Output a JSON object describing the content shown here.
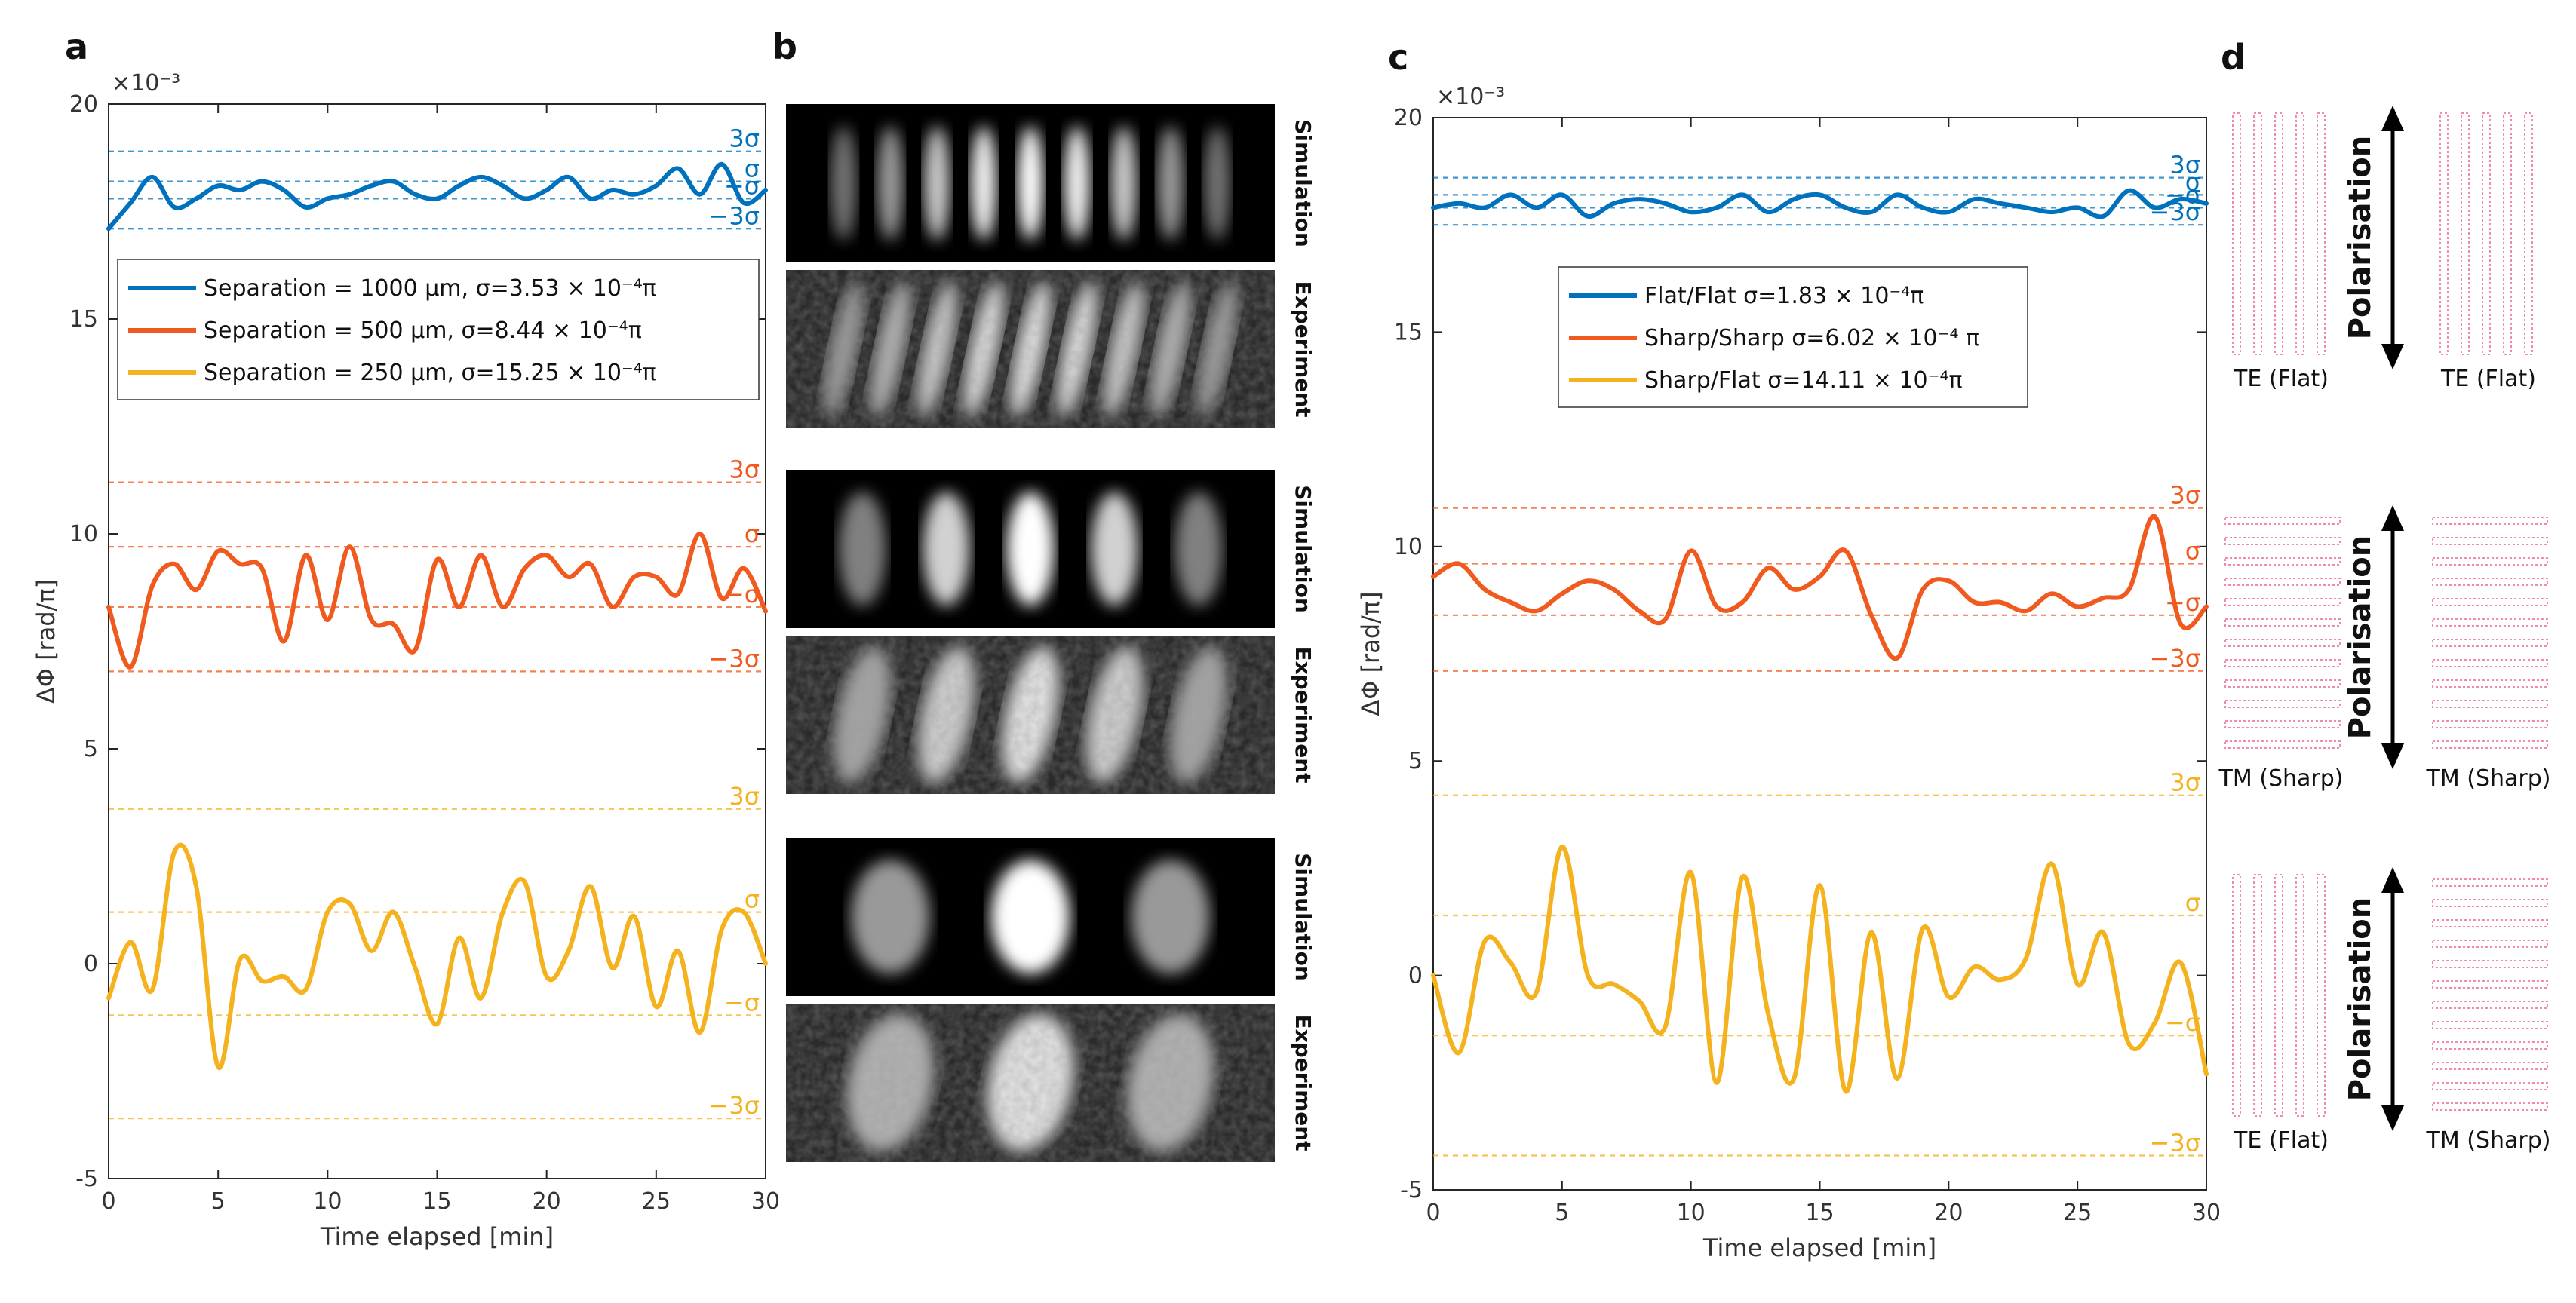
{
  "panels": {
    "a": "a",
    "b": "b",
    "c": "c",
    "d": "d"
  },
  "colors": {
    "blue": "#0072BD",
    "orange": "#F05A1E",
    "yellow": "#F5B21F",
    "pink": "#F28AAE"
  },
  "chart_data": [
    {
      "type": "line",
      "panel": "a",
      "title": "",
      "xlabel": "Time elapsed [min]",
      "ylabel": "ΔΦ [rad/π]",
      "yexponent": "×10⁻³",
      "xlim": [
        0,
        30
      ],
      "ylim": [
        -5,
        20
      ],
      "xticks": [
        "0",
        "5",
        "10",
        "15",
        "20",
        "25",
        "30"
      ],
      "yticks": [
        "-5",
        "0",
        "5",
        "10",
        "15",
        "20"
      ],
      "legend_position": "upper-left",
      "series": [
        {
          "name": "Separation = 1000 μm,  σ=3.53 × 10⁻⁴π",
          "color": "#0072BD",
          "x": [
            0,
            1,
            2,
            3,
            4,
            5,
            6,
            7,
            8,
            9,
            10,
            11,
            12,
            13,
            14,
            15,
            16,
            17,
            18,
            19,
            20,
            21,
            22,
            23,
            24,
            25,
            26,
            27,
            28,
            29,
            30
          ],
          "y": [
            17.1,
            17.7,
            18.3,
            17.6,
            17.8,
            18.1,
            18.0,
            18.2,
            18.0,
            17.6,
            17.8,
            17.9,
            18.1,
            18.2,
            17.9,
            17.8,
            18.1,
            18.3,
            18.1,
            17.8,
            18.0,
            18.3,
            17.8,
            18.0,
            17.9,
            18.1,
            18.5,
            17.9,
            18.6,
            17.7,
            18.0
          ],
          "sigma_lines": {
            "3σ": 18.9,
            "σ": 18.2,
            "-σ": 17.8,
            "-3σ": 17.1
          },
          "sigma_labels": [
            "3σ",
            "σ",
            "−σ",
            "−3σ"
          ]
        },
        {
          "name": "Separation = 500 μm,  σ=8.44 × 10⁻⁴π",
          "color": "#F05A1E",
          "x": [
            0,
            1,
            2,
            3,
            4,
            5,
            6,
            7,
            8,
            9,
            10,
            11,
            12,
            13,
            14,
            15,
            16,
            17,
            18,
            19,
            20,
            21,
            22,
            23,
            24,
            25,
            26,
            27,
            28,
            29,
            30
          ],
          "y": [
            8.3,
            6.9,
            8.8,
            9.3,
            8.7,
            9.6,
            9.3,
            9.2,
            7.5,
            9.5,
            8.0,
            9.7,
            8.0,
            7.9,
            7.3,
            9.4,
            8.3,
            9.5,
            8.3,
            9.2,
            9.5,
            9.0,
            9.3,
            8.3,
            9.0,
            9.0,
            8.6,
            10.0,
            8.5,
            9.2,
            8.2
          ],
          "sigma_lines": {
            "3σ": 11.2,
            "σ": 9.7,
            "-σ": 8.3,
            "-3σ": 6.8
          },
          "sigma_labels": [
            "3σ",
            "σ",
            "−σ",
            "−3σ"
          ]
        },
        {
          "name": "Separation = 250 μm,  σ=15.25 × 10⁻⁴π",
          "color": "#F5B21F",
          "x": [
            0,
            1,
            2,
            3,
            4,
            5,
            6,
            7,
            8,
            9,
            10,
            11,
            12,
            13,
            14,
            15,
            16,
            17,
            18,
            19,
            20,
            21,
            22,
            23,
            24,
            25,
            26,
            27,
            28,
            29,
            30
          ],
          "y": [
            -0.8,
            0.5,
            -0.6,
            2.6,
            1.8,
            -2.4,
            0.1,
            -0.4,
            -0.3,
            -0.6,
            1.2,
            1.4,
            0.3,
            1.2,
            -0.1,
            -1.4,
            0.6,
            -0.8,
            1.2,
            1.9,
            -0.3,
            0.3,
            1.8,
            -0.1,
            1.1,
            -1.0,
            0.3,
            -1.6,
            0.8,
            1.2,
            0.0
          ],
          "sigma_lines": {
            "3σ": 3.6,
            "σ": 1.2,
            "-σ": -1.2,
            "-3σ": -3.6
          },
          "sigma_labels": [
            "3σ",
            "σ",
            "−σ",
            "−3σ"
          ]
        }
      ]
    },
    {
      "type": "line",
      "panel": "c",
      "title": "",
      "xlabel": "Time elapsed [min]",
      "ylabel": "ΔΦ [rad/π]",
      "yexponent": "×10⁻³",
      "xlim": [
        0,
        30
      ],
      "ylim": [
        -5,
        20
      ],
      "xticks": [
        "0",
        "5",
        "10",
        "15",
        "20",
        "25",
        "30"
      ],
      "yticks": [
        "-5",
        "0",
        "5",
        "10",
        "15",
        "20"
      ],
      "legend_position": "upper-center",
      "series": [
        {
          "name": "Flat/Flat σ=1.83 × 10⁻⁴π",
          "color": "#0072BD",
          "x": [
            0,
            1,
            2,
            3,
            4,
            5,
            6,
            7,
            8,
            9,
            10,
            11,
            12,
            13,
            14,
            15,
            16,
            17,
            18,
            19,
            20,
            21,
            22,
            23,
            24,
            25,
            26,
            27,
            28,
            29,
            30
          ],
          "y": [
            17.9,
            18.0,
            17.9,
            18.2,
            17.9,
            18.2,
            17.7,
            18.0,
            18.1,
            18.0,
            17.8,
            17.9,
            18.2,
            17.8,
            18.1,
            18.2,
            17.9,
            17.8,
            18.2,
            17.9,
            17.8,
            18.1,
            18.0,
            17.9,
            17.8,
            17.9,
            17.7,
            18.3,
            17.9,
            18.1,
            18.0
          ],
          "sigma_lines": {
            "3σ": 18.6,
            "σ": 18.2,
            "-σ": 17.9,
            "-3σ": 17.5
          },
          "sigma_labels": [
            "3σ",
            "σ",
            "−σ",
            "−3σ"
          ]
        },
        {
          "name": "Sharp/Sharp σ=6.02 × 10⁻⁴ π",
          "color": "#F05A1E",
          "x": [
            0,
            1,
            2,
            3,
            4,
            5,
            6,
            7,
            8,
            9,
            10,
            11,
            12,
            13,
            14,
            15,
            16,
            17,
            18,
            19,
            20,
            21,
            22,
            23,
            24,
            25,
            26,
            27,
            28,
            29,
            30
          ],
          "y": [
            9.3,
            9.6,
            9.0,
            8.7,
            8.5,
            8.9,
            9.2,
            9.0,
            8.5,
            8.3,
            9.9,
            8.6,
            8.7,
            9.5,
            9.0,
            9.3,
            9.9,
            8.4,
            7.4,
            9.0,
            9.2,
            8.7,
            8.7,
            8.5,
            8.9,
            8.6,
            8.8,
            9.0,
            10.7,
            8.2,
            8.6
          ],
          "sigma_lines": {
            "3σ": 10.9,
            "σ": 9.6,
            "-σ": 8.4,
            "-3σ": 7.1
          },
          "sigma_labels": [
            "3σ",
            "σ",
            "−σ",
            "−3σ"
          ]
        },
        {
          "name": "Sharp/Flat σ=14.11 × 10⁻⁴π",
          "color": "#F5B21F",
          "x": [
            0,
            1,
            2,
            3,
            4,
            5,
            6,
            7,
            8,
            9,
            10,
            11,
            12,
            13,
            14,
            15,
            16,
            17,
            18,
            19,
            20,
            21,
            22,
            23,
            24,
            25,
            26,
            27,
            28,
            29,
            30
          ],
          "y": [
            0.0,
            -1.8,
            0.8,
            0.3,
            -0.4,
            3.0,
            0.0,
            -0.2,
            -0.6,
            -1.2,
            2.4,
            -2.5,
            2.3,
            -0.9,
            -2.4,
            2.1,
            -2.7,
            1.0,
            -2.4,
            1.1,
            -0.5,
            0.2,
            -0.1,
            0.4,
            2.6,
            -0.2,
            1.0,
            -1.6,
            -1.1,
            0.3,
            -2.3
          ],
          "sigma_lines": {
            "3σ": 4.2,
            "σ": 1.4,
            "-σ": -1.4,
            "-3σ": -4.2
          },
          "sigma_labels": [
            "3σ",
            "σ",
            "−σ",
            "−3σ"
          ]
        }
      ]
    }
  ],
  "panel_b": {
    "rows": [
      {
        "sim_label": "Simulation",
        "exp_label": "Experiment",
        "fringes": 9
      },
      {
        "sim_label": "Simulation",
        "exp_label": "Experiment",
        "fringes": 5
      },
      {
        "sim_label": "Simulation",
        "exp_label": "Experiment",
        "fringes": 3
      }
    ]
  },
  "panel_d": {
    "polarisation_label": "Polarisation",
    "rows": [
      {
        "left": "TE (Flat)",
        "right": "TE (Flat)",
        "left_orient": "vertical",
        "right_orient": "vertical"
      },
      {
        "left": "TM (Sharp)",
        "right": "TM (Sharp)",
        "left_orient": "horizontal",
        "right_orient": "horizontal"
      },
      {
        "left": "TE (Flat)",
        "right": "TM (Sharp)",
        "left_orient": "vertical",
        "right_orient": "horizontal"
      }
    ]
  }
}
